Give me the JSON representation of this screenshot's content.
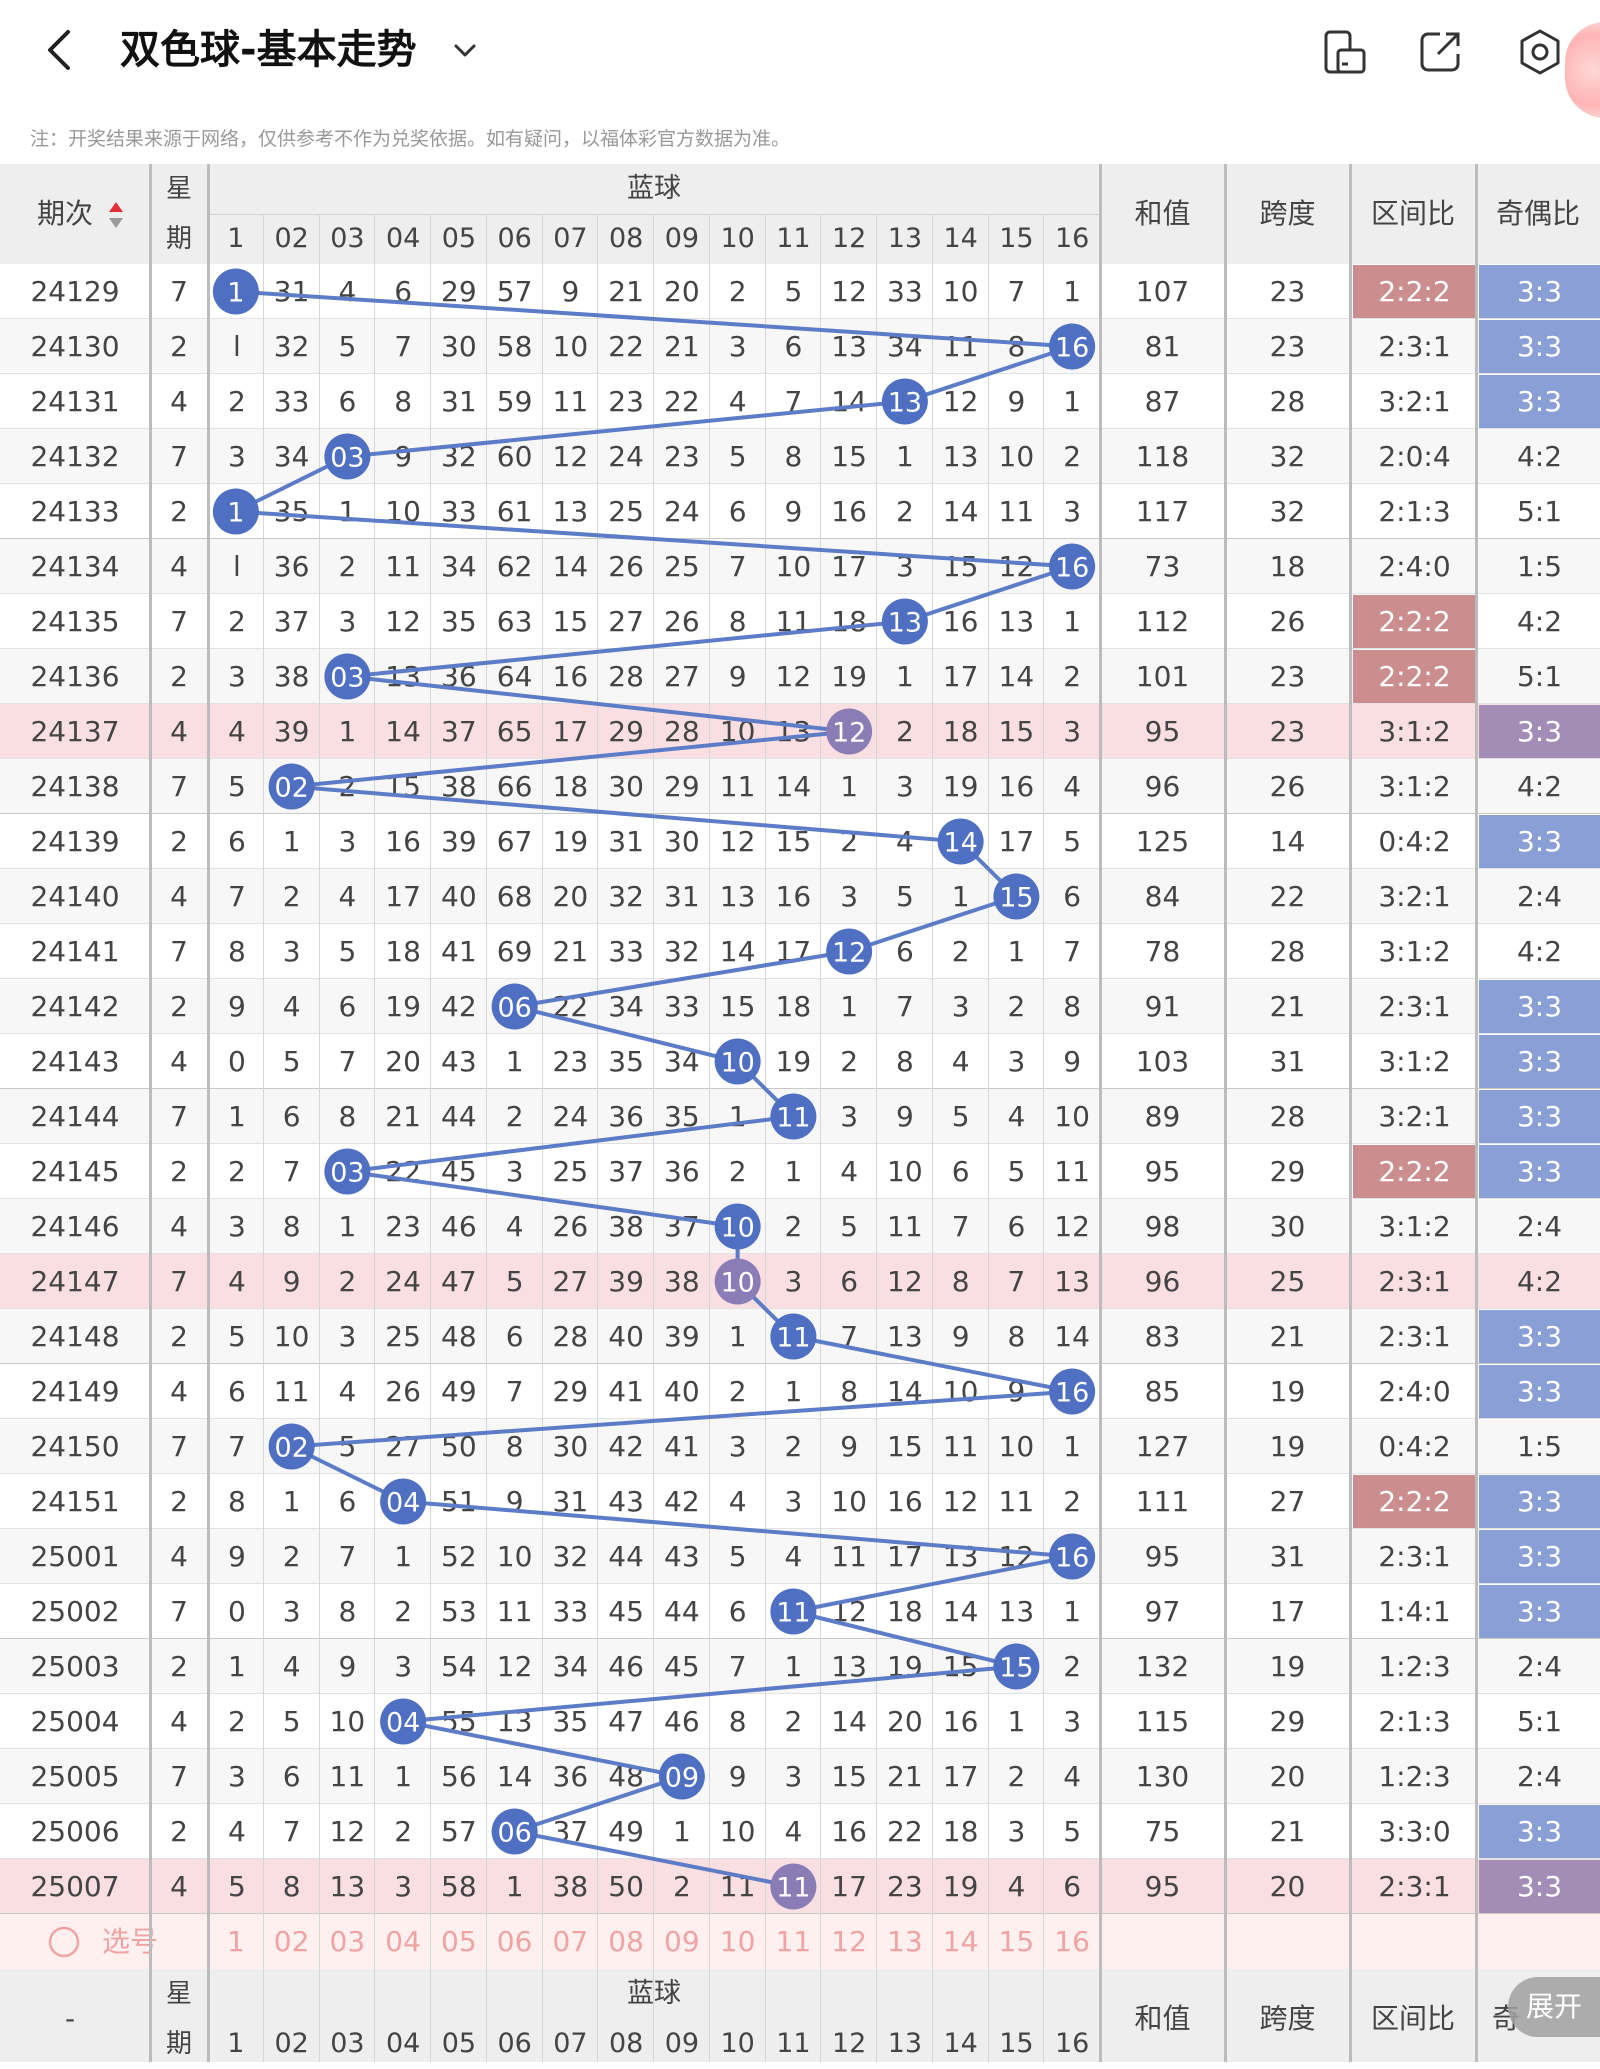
{
  "app": {
    "title": "双色球-基本走势",
    "back_icon": "chevron-left-icon",
    "title_dropdown_icon": "chevron-down-icon",
    "toolbar_icons": [
      "phone-landscape-icon",
      "share-icon",
      "settings-gear-icon"
    ],
    "note": "注：开奖结果来源于网络，仅供参考不作为兑奖依据。如有疑问，以福体彩官方数据为准。"
  },
  "header": {
    "period": "期次",
    "week_line1": "星",
    "week_line2": "期",
    "blue": "蓝球",
    "sum": "和值",
    "span": "跨度",
    "zone": "区间比",
    "parity": "奇偶比",
    "sort_icon": "sort-updown-icon",
    "blue_numbers": [
      "1",
      "02",
      "03",
      "04",
      "05",
      "06",
      "07",
      "08",
      "09",
      "10",
      "11",
      "12",
      "13",
      "14",
      "15",
      "16"
    ]
  },
  "rows": [
    {
      "period": "24129",
      "week": "7",
      "cells": [
        "1",
        "31",
        "4",
        "6",
        "29",
        "57",
        "9",
        "21",
        "20",
        "2",
        "5",
        "12",
        "33",
        "10",
        "7",
        "1"
      ],
      "sum": "107",
      "span": "23",
      "zone": "2:2:2",
      "parity": "3:3",
      "zone_style": "bad",
      "parity_style": "good",
      "hl": false
    },
    {
      "period": "24130",
      "week": "2",
      "cells": [
        "l",
        "32",
        "5",
        "7",
        "30",
        "58",
        "10",
        "22",
        "21",
        "3",
        "6",
        "13",
        "34",
        "11",
        "8",
        "16"
      ],
      "sum": "81",
      "span": "23",
      "zone": "2:3:1",
      "parity": "3:3",
      "zone_style": "",
      "parity_style": "good",
      "hl": false
    },
    {
      "period": "24131",
      "week": "4",
      "cells": [
        "2",
        "33",
        "6",
        "8",
        "31",
        "59",
        "11",
        "23",
        "22",
        "4",
        "7",
        "14",
        "13",
        "12",
        "9",
        "1"
      ],
      "sum": "87",
      "span": "28",
      "zone": "3:2:1",
      "parity": "3:3",
      "zone_style": "",
      "parity_style": "good",
      "hl": false
    },
    {
      "period": "24132",
      "week": "7",
      "cells": [
        "3",
        "34",
        "03",
        "9",
        "32",
        "60",
        "12",
        "24",
        "23",
        "5",
        "8",
        "15",
        "1",
        "13",
        "10",
        "2"
      ],
      "sum": "118",
      "span": "32",
      "zone": "2:0:4",
      "parity": "4:2",
      "zone_style": "",
      "parity_style": "",
      "hl": false
    },
    {
      "period": "24133",
      "week": "2",
      "cells": [
        "1",
        "35",
        "1",
        "10",
        "33",
        "61",
        "13",
        "25",
        "24",
        "6",
        "9",
        "16",
        "2",
        "14",
        "11",
        "3"
      ],
      "sum": "117",
      "span": "32",
      "zone": "2:1:3",
      "parity": "5:1",
      "zone_style": "",
      "parity_style": "",
      "hl": false
    },
    {
      "period": "24134",
      "week": "4",
      "cells": [
        "l",
        "36",
        "2",
        "11",
        "34",
        "62",
        "14",
        "26",
        "25",
        "7",
        "10",
        "17",
        "3",
        "15",
        "12",
        "16"
      ],
      "sum": "73",
      "span": "18",
      "zone": "2:4:0",
      "parity": "1:5",
      "zone_style": "",
      "parity_style": "",
      "hl": false
    },
    {
      "period": "24135",
      "week": "7",
      "cells": [
        "2",
        "37",
        "3",
        "12",
        "35",
        "63",
        "15",
        "27",
        "26",
        "8",
        "11",
        "18",
        "13",
        "16",
        "13",
        "1"
      ],
      "sum": "112",
      "span": "26",
      "zone": "2:2:2",
      "parity": "4:2",
      "zone_style": "bad",
      "parity_style": "",
      "hl": false
    },
    {
      "period": "24136",
      "week": "2",
      "cells": [
        "3",
        "38",
        "03",
        "13",
        "36",
        "64",
        "16",
        "28",
        "27",
        "9",
        "12",
        "19",
        "1",
        "17",
        "14",
        "2"
      ],
      "sum": "101",
      "span": "23",
      "zone": "2:2:2",
      "parity": "5:1",
      "zone_style": "bad",
      "parity_style": "",
      "hl": false
    },
    {
      "period": "24137",
      "week": "4",
      "cells": [
        "4",
        "39",
        "1",
        "14",
        "37",
        "65",
        "17",
        "29",
        "28",
        "10",
        "13",
        "12",
        "2",
        "18",
        "15",
        "3"
      ],
      "sum": "95",
      "span": "23",
      "zone": "3:1:2",
      "parity": "3:3",
      "zone_style": "",
      "parity_style": "mix",
      "hl": true
    },
    {
      "period": "24138",
      "week": "7",
      "cells": [
        "5",
        "02",
        "2",
        "15",
        "38",
        "66",
        "18",
        "30",
        "29",
        "11",
        "14",
        "1",
        "3",
        "19",
        "16",
        "4"
      ],
      "sum": "96",
      "span": "26",
      "zone": "3:1:2",
      "parity": "4:2",
      "zone_style": "",
      "parity_style": "",
      "hl": false
    },
    {
      "period": "24139",
      "week": "2",
      "cells": [
        "6",
        "1",
        "3",
        "16",
        "39",
        "67",
        "19",
        "31",
        "30",
        "12",
        "15",
        "2",
        "4",
        "14",
        "17",
        "5"
      ],
      "sum": "125",
      "span": "14",
      "zone": "0:4:2",
      "parity": "3:3",
      "zone_style": "",
      "parity_style": "good",
      "hl": false
    },
    {
      "period": "24140",
      "week": "4",
      "cells": [
        "7",
        "2",
        "4",
        "17",
        "40",
        "68",
        "20",
        "32",
        "31",
        "13",
        "16",
        "3",
        "5",
        "1",
        "15",
        "6"
      ],
      "sum": "84",
      "span": "22",
      "zone": "3:2:1",
      "parity": "2:4",
      "zone_style": "",
      "parity_style": "",
      "hl": false
    },
    {
      "period": "24141",
      "week": "7",
      "cells": [
        "8",
        "3",
        "5",
        "18",
        "41",
        "69",
        "21",
        "33",
        "32",
        "14",
        "17",
        "12",
        "6",
        "2",
        "1",
        "7"
      ],
      "sum": "78",
      "span": "28",
      "zone": "3:1:2",
      "parity": "4:2",
      "zone_style": "",
      "parity_style": "",
      "hl": false
    },
    {
      "period": "24142",
      "week": "2",
      "cells": [
        "9",
        "4",
        "6",
        "19",
        "42",
        "06",
        "22",
        "34",
        "33",
        "15",
        "18",
        "1",
        "7",
        "3",
        "2",
        "8"
      ],
      "sum": "91",
      "span": "21",
      "zone": "2:3:1",
      "parity": "3:3",
      "zone_style": "",
      "parity_style": "good",
      "hl": false
    },
    {
      "period": "24143",
      "week": "4",
      "cells": [
        "0",
        "5",
        "7",
        "20",
        "43",
        "1",
        "23",
        "35",
        "34",
        "10",
        "19",
        "2",
        "8",
        "4",
        "3",
        "9"
      ],
      "sum": "103",
      "span": "31",
      "zone": "3:1:2",
      "parity": "3:3",
      "zone_style": "",
      "parity_style": "good",
      "hl": false
    },
    {
      "period": "24144",
      "week": "7",
      "cells": [
        "1",
        "6",
        "8",
        "21",
        "44",
        "2",
        "24",
        "36",
        "35",
        "1",
        "11",
        "3",
        "9",
        "5",
        "4",
        "10"
      ],
      "sum": "89",
      "span": "28",
      "zone": "3:2:1",
      "parity": "3:3",
      "zone_style": "",
      "parity_style": "good",
      "hl": false
    },
    {
      "period": "24145",
      "week": "2",
      "cells": [
        "2",
        "7",
        "03",
        "22",
        "45",
        "3",
        "25",
        "37",
        "36",
        "2",
        "1",
        "4",
        "10",
        "6",
        "5",
        "11"
      ],
      "sum": "95",
      "span": "29",
      "zone": "2:2:2",
      "parity": "3:3",
      "zone_style": "bad",
      "parity_style": "good",
      "hl": false
    },
    {
      "period": "24146",
      "week": "4",
      "cells": [
        "3",
        "8",
        "1",
        "23",
        "46",
        "4",
        "26",
        "38",
        "37",
        "10",
        "2",
        "5",
        "11",
        "7",
        "6",
        "12"
      ],
      "sum": "98",
      "span": "30",
      "zone": "3:1:2",
      "parity": "2:4",
      "zone_style": "",
      "parity_style": "",
      "hl": false
    },
    {
      "period": "24147",
      "week": "7",
      "cells": [
        "4",
        "9",
        "2",
        "24",
        "47",
        "5",
        "27",
        "39",
        "38",
        "10",
        "3",
        "6",
        "12",
        "8",
        "7",
        "13"
      ],
      "sum": "96",
      "span": "25",
      "zone": "2:3:1",
      "parity": "4:2",
      "zone_style": "",
      "parity_style": "",
      "hl": true
    },
    {
      "period": "24148",
      "week": "2",
      "cells": [
        "5",
        "10",
        "3",
        "25",
        "48",
        "6",
        "28",
        "40",
        "39",
        "1",
        "11",
        "7",
        "13",
        "9",
        "8",
        "14"
      ],
      "sum": "83",
      "span": "21",
      "zone": "2:3:1",
      "parity": "3:3",
      "zone_style": "",
      "parity_style": "good",
      "hl": false
    },
    {
      "period": "24149",
      "week": "4",
      "cells": [
        "6",
        "11",
        "4",
        "26",
        "49",
        "7",
        "29",
        "41",
        "40",
        "2",
        "1",
        "8",
        "14",
        "10",
        "9",
        "16"
      ],
      "sum": "85",
      "span": "19",
      "zone": "2:4:0",
      "parity": "3:3",
      "zone_style": "",
      "parity_style": "good",
      "hl": false
    },
    {
      "period": "24150",
      "week": "7",
      "cells": [
        "7",
        "02",
        "5",
        "27",
        "50",
        "8",
        "30",
        "42",
        "41",
        "3",
        "2",
        "9",
        "15",
        "11",
        "10",
        "1"
      ],
      "sum": "127",
      "span": "19",
      "zone": "0:4:2",
      "parity": "1:5",
      "zone_style": "",
      "parity_style": "",
      "hl": false
    },
    {
      "period": "24151",
      "week": "2",
      "cells": [
        "8",
        "1",
        "6",
        "04",
        "51",
        "9",
        "31",
        "43",
        "42",
        "4",
        "3",
        "10",
        "16",
        "12",
        "11",
        "2"
      ],
      "sum": "111",
      "span": "27",
      "zone": "2:2:2",
      "parity": "3:3",
      "zone_style": "bad",
      "parity_style": "good",
      "hl": false
    },
    {
      "period": "25001",
      "week": "4",
      "cells": [
        "9",
        "2",
        "7",
        "1",
        "52",
        "10",
        "32",
        "44",
        "43",
        "5",
        "4",
        "11",
        "17",
        "13",
        "12",
        "16"
      ],
      "sum": "95",
      "span": "31",
      "zone": "2:3:1",
      "parity": "3:3",
      "zone_style": "",
      "parity_style": "good",
      "hl": false
    },
    {
      "period": "25002",
      "week": "7",
      "cells": [
        "0",
        "3",
        "8",
        "2",
        "53",
        "11",
        "33",
        "45",
        "44",
        "6",
        "11",
        "12",
        "18",
        "14",
        "13",
        "1"
      ],
      "sum": "97",
      "span": "17",
      "zone": "1:4:1",
      "parity": "3:3",
      "zone_style": "",
      "parity_style": "good",
      "hl": false
    },
    {
      "period": "25003",
      "week": "2",
      "cells": [
        "1",
        "4",
        "9",
        "3",
        "54",
        "12",
        "34",
        "46",
        "45",
        "7",
        "1",
        "13",
        "19",
        "15",
        "15",
        "2"
      ],
      "sum": "132",
      "span": "19",
      "zone": "1:2:3",
      "parity": "2:4",
      "zone_style": "",
      "parity_style": "",
      "hl": false
    },
    {
      "period": "25004",
      "week": "4",
      "cells": [
        "2",
        "5",
        "10",
        "04",
        "55",
        "13",
        "35",
        "47",
        "46",
        "8",
        "2",
        "14",
        "20",
        "16",
        "1",
        "3"
      ],
      "sum": "115",
      "span": "29",
      "zone": "2:1:3",
      "parity": "5:1",
      "zone_style": "",
      "parity_style": "",
      "hl": false
    },
    {
      "period": "25005",
      "week": "7",
      "cells": [
        "3",
        "6",
        "11",
        "1",
        "56",
        "14",
        "36",
        "48",
        "09",
        "9",
        "3",
        "15",
        "21",
        "17",
        "2",
        "4"
      ],
      "sum": "130",
      "span": "20",
      "zone": "1:2:3",
      "parity": "2:4",
      "zone_style": "",
      "parity_style": "",
      "hl": false
    },
    {
      "period": "25006",
      "week": "2",
      "cells": [
        "4",
        "7",
        "12",
        "2",
        "57",
        "06",
        "37",
        "49",
        "1",
        "10",
        "4",
        "16",
        "22",
        "18",
        "3",
        "5"
      ],
      "sum": "75",
      "span": "21",
      "zone": "3:3:0",
      "parity": "3:3",
      "zone_style": "",
      "parity_style": "good",
      "hl": false
    },
    {
      "period": "25007",
      "week": "4",
      "cells": [
        "5",
        "8",
        "13",
        "3",
        "58",
        "1",
        "38",
        "50",
        "2",
        "11",
        "11",
        "17",
        "23",
        "19",
        "4",
        "6"
      ],
      "sum": "95",
      "span": "20",
      "zone": "2:3:1",
      "parity": "3:3",
      "zone_style": "",
      "parity_style": "mix",
      "hl": true
    }
  ],
  "draws": [
    {
      "row": 0,
      "col": 0,
      "label": "1"
    },
    {
      "row": 1,
      "col": 15,
      "label": "16"
    },
    {
      "row": 2,
      "col": 12,
      "label": "13"
    },
    {
      "row": 3,
      "col": 2,
      "label": "03"
    },
    {
      "row": 4,
      "col": 0,
      "label": "1"
    },
    {
      "row": 5,
      "col": 15,
      "label": "16"
    },
    {
      "row": 6,
      "col": 12,
      "label": "13"
    },
    {
      "row": 7,
      "col": 2,
      "label": "03"
    },
    {
      "row": 8,
      "col": 11,
      "label": "12"
    },
    {
      "row": 9,
      "col": 1,
      "label": "02"
    },
    {
      "row": 10,
      "col": 13,
      "label": "14"
    },
    {
      "row": 11,
      "col": 14,
      "label": "15"
    },
    {
      "row": 12,
      "col": 11,
      "label": "12"
    },
    {
      "row": 13,
      "col": 5,
      "label": "06"
    },
    {
      "row": 14,
      "col": 9,
      "label": "10"
    },
    {
      "row": 15,
      "col": 10,
      "label": "11"
    },
    {
      "row": 16,
      "col": 2,
      "label": "03"
    },
    {
      "row": 17,
      "col": 9,
      "label": "10"
    },
    {
      "row": 18,
      "col": 9,
      "label": "10"
    },
    {
      "row": 19,
      "col": 10,
      "label": "11"
    },
    {
      "row": 20,
      "col": 15,
      "label": "16"
    },
    {
      "row": 21,
      "col": 1,
      "label": "02"
    },
    {
      "row": 22,
      "col": 3,
      "label": "04"
    },
    {
      "row": 23,
      "col": 15,
      "label": "16"
    },
    {
      "row": 24,
      "col": 10,
      "label": "11"
    },
    {
      "row": 25,
      "col": 14,
      "label": "15"
    },
    {
      "row": 26,
      "col": 3,
      "label": "04"
    },
    {
      "row": 27,
      "col": 8,
      "label": "09"
    },
    {
      "row": 28,
      "col": 5,
      "label": "06"
    },
    {
      "row": 29,
      "col": 10,
      "label": "11"
    }
  ],
  "select_row": {
    "label": "选号",
    "icon": "radio-circle-icon",
    "numbers": [
      "1",
      "02",
      "03",
      "04",
      "05",
      "06",
      "07",
      "08",
      "09",
      "10",
      "11",
      "12",
      "13",
      "14",
      "15",
      "16"
    ]
  },
  "footer_header": {
    "period": "-",
    "week_line1": "星",
    "week_line2": "期",
    "blue": "蓝球",
    "sum": "和值",
    "span": "跨度",
    "zone": "区间比",
    "parity": "奇",
    "numbers": [
      "1",
      "02",
      "03",
      "04",
      "05",
      "06",
      "07",
      "08",
      "09",
      "10",
      "11",
      "12",
      "13",
      "14",
      "15",
      "16"
    ]
  },
  "expand_button": "展开",
  "colors": {
    "ball": "#4f6fc2",
    "ball_highlight": "#8a7db6",
    "line": "#5d7cc7",
    "zone_bad": "#cc8d8f",
    "zone_good": "#8a9fd6",
    "highlight_row": "#f9dfe2",
    "select_row": "#fdf0ef",
    "select_text": "#f0a3a3"
  }
}
